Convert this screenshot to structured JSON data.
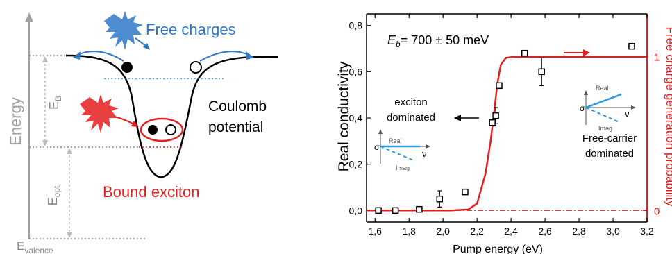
{
  "left_panel": {
    "energy_label": "Energy",
    "free_charges_label": "Free charges",
    "coulomb_label_line1": "Coulomb",
    "coulomb_label_line2": "potential",
    "bound_exciton_label": "Bound exciton",
    "eb_label_main": "E",
    "eb_label_sub": "B",
    "eopt_label_main": "E",
    "eopt_label_sub": "opt",
    "evalence_label_main": "E",
    "evalence_label_sub": "valence",
    "colors": {
      "blue": "#2f78c8",
      "red": "#e41e1e",
      "grey": "#a0a0a0",
      "black": "#000000"
    }
  },
  "right_panel": {
    "ylabel_right": "Free charge generation probability",
    "annotation_eb": "= 700 ± 50 meV",
    "annotation_eb_prefix_main": "E",
    "annotation_eb_prefix_sub": "b",
    "exciton_line1": "exciton",
    "exciton_line2": "dominated",
    "free_line1": "Free-carrier",
    "free_line2": "dominated",
    "inset_real": "Real",
    "inset_imag": "Imag",
    "inset_sigma": "σ",
    "inset_nu": "ν",
    "right_ticks": [
      "0",
      "1"
    ]
  },
  "chart_data": {
    "type": "scatter",
    "xlabel": "Pump energy (eV)",
    "ylabel": "Real conductivity",
    "xlim": [
      1.55,
      3.2
    ],
    "ylim": [
      -0.05,
      0.85
    ],
    "x_ticks": [
      "1,6",
      "1,8",
      "2,0",
      "2,2",
      "2,4",
      "2,6",
      "2,8",
      "3,0",
      "3,2"
    ],
    "y_ticks": [
      "0,0",
      "0,2",
      "0,4",
      "0,6",
      "0,8"
    ],
    "series": [
      {
        "marker": "open-square",
        "color": "#000000",
        "points": [
          {
            "x": 1.62,
            "y": 0.0,
            "err": 0.0
          },
          {
            "x": 1.72,
            "y": 0.0,
            "err": 0.0
          },
          {
            "x": 1.86,
            "y": 0.005,
            "err": 0.0
          },
          {
            "x": 1.98,
            "y": 0.05,
            "err": 0.035
          },
          {
            "x": 2.13,
            "y": 0.08,
            "err": 0.0
          },
          {
            "x": 2.29,
            "y": 0.38,
            "err": 0.0
          },
          {
            "x": 2.31,
            "y": 0.41,
            "err": 0.035
          },
          {
            "x": 2.33,
            "y": 0.54,
            "err": 0.0
          },
          {
            "x": 2.48,
            "y": 0.68,
            "err": 0.0
          },
          {
            "x": 2.58,
            "y": 0.6,
            "err": 0.06
          },
          {
            "x": 3.11,
            "y": 0.71,
            "err": 0.0
          }
        ]
      },
      {
        "type": "line",
        "color": "#e41e1e",
        "points": [
          {
            "x": 1.55,
            "y": 0.0
          },
          {
            "x": 2.05,
            "y": 0.0
          },
          {
            "x": 2.15,
            "y": 0.005
          },
          {
            "x": 2.2,
            "y": 0.03
          },
          {
            "x": 2.25,
            "y": 0.16
          },
          {
            "x": 2.28,
            "y": 0.3
          },
          {
            "x": 2.3,
            "y": 0.42
          },
          {
            "x": 2.32,
            "y": 0.55
          },
          {
            "x": 2.34,
            "y": 0.63
          },
          {
            "x": 2.37,
            "y": 0.66
          },
          {
            "x": 2.42,
            "y": 0.665
          },
          {
            "x": 3.2,
            "y": 0.665
          }
        ]
      }
    ],
    "red_dashline_y": 0.0
  }
}
